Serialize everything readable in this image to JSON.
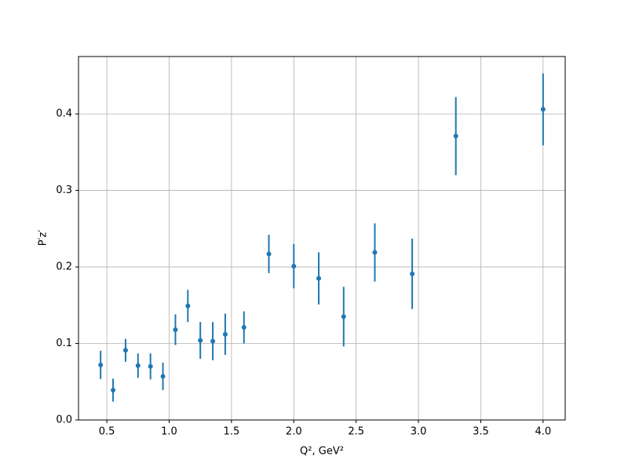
{
  "chart_data": {
    "type": "errorbar",
    "xlabel": "Q², GeV²",
    "ylabel": "P′z′",
    "x": [
      0.45,
      0.55,
      0.65,
      0.75,
      0.85,
      0.95,
      1.05,
      1.15,
      1.25,
      1.35,
      1.45,
      1.6,
      1.8,
      2.0,
      2.2,
      2.4,
      2.65,
      2.95,
      3.3,
      4.0
    ],
    "values": [
      0.072,
      0.039,
      0.091,
      0.071,
      0.07,
      0.057,
      0.118,
      0.149,
      0.104,
      0.103,
      0.112,
      0.121,
      0.217,
      0.201,
      0.185,
      0.135,
      0.219,
      0.191,
      0.371,
      0.406
    ],
    "errors": [
      0.0185,
      0.015,
      0.015,
      0.016,
      0.017,
      0.018,
      0.02,
      0.021,
      0.024,
      0.025,
      0.027,
      0.021,
      0.025,
      0.029,
      0.034,
      0.039,
      0.038,
      0.046,
      0.051,
      0.047
    ],
    "color": "#1f77b4",
    "xlim": [
      0.2725,
      4.1775
    ],
    "ylim": [
      0,
      0.475
    ],
    "xticks": [
      0.5,
      {
        "value": 1,
        "label": "1.0"
      },
      1.5,
      {
        "value": 2,
        "label": "2.0"
      },
      2.5,
      {
        "value": 3,
        "label": "3.0"
      },
      3.5,
      {
        "value": 4,
        "label": "4.0"
      }
    ],
    "yticks": [
      {
        "value": 0,
        "label": "0.0"
      },
      0.1,
      0.2,
      0.3,
      0.4
    ],
    "grid": true
  }
}
